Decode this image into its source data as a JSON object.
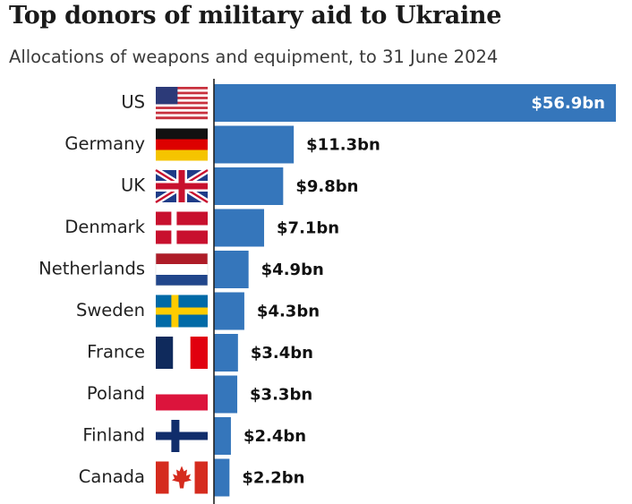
{
  "chart_data": {
    "type": "bar",
    "orientation": "horizontal",
    "title": "Top donors of military aid to Ukraine",
    "subtitle": "Allocations of weapons and equipment, to 31 June 2024",
    "unit": "$ bn",
    "categories": [
      "US",
      "Germany",
      "UK",
      "Denmark",
      "Netherlands",
      "Sweden",
      "France",
      "Poland",
      "Finland",
      "Canada"
    ],
    "values": [
      56.9,
      11.3,
      9.8,
      7.1,
      4.9,
      4.3,
      3.4,
      3.3,
      2.4,
      2.2
    ],
    "labels": [
      "$56.9bn",
      "$11.3bn",
      "$9.8bn",
      "$7.1bn",
      "$4.9bn",
      "$4.3bn",
      "$3.4bn",
      "$3.3bn",
      "$2.4bn",
      "$2.2bn"
    ],
    "flags": [
      "us-flag",
      "germany-flag",
      "uk-flag",
      "denmark-flag",
      "netherlands-flag",
      "sweden-flag",
      "france-flag",
      "poland-flag",
      "finland-flag",
      "canada-flag"
    ],
    "bar_color": "#3576bb",
    "xlim": [
      0,
      56.9
    ],
    "grid": false
  }
}
